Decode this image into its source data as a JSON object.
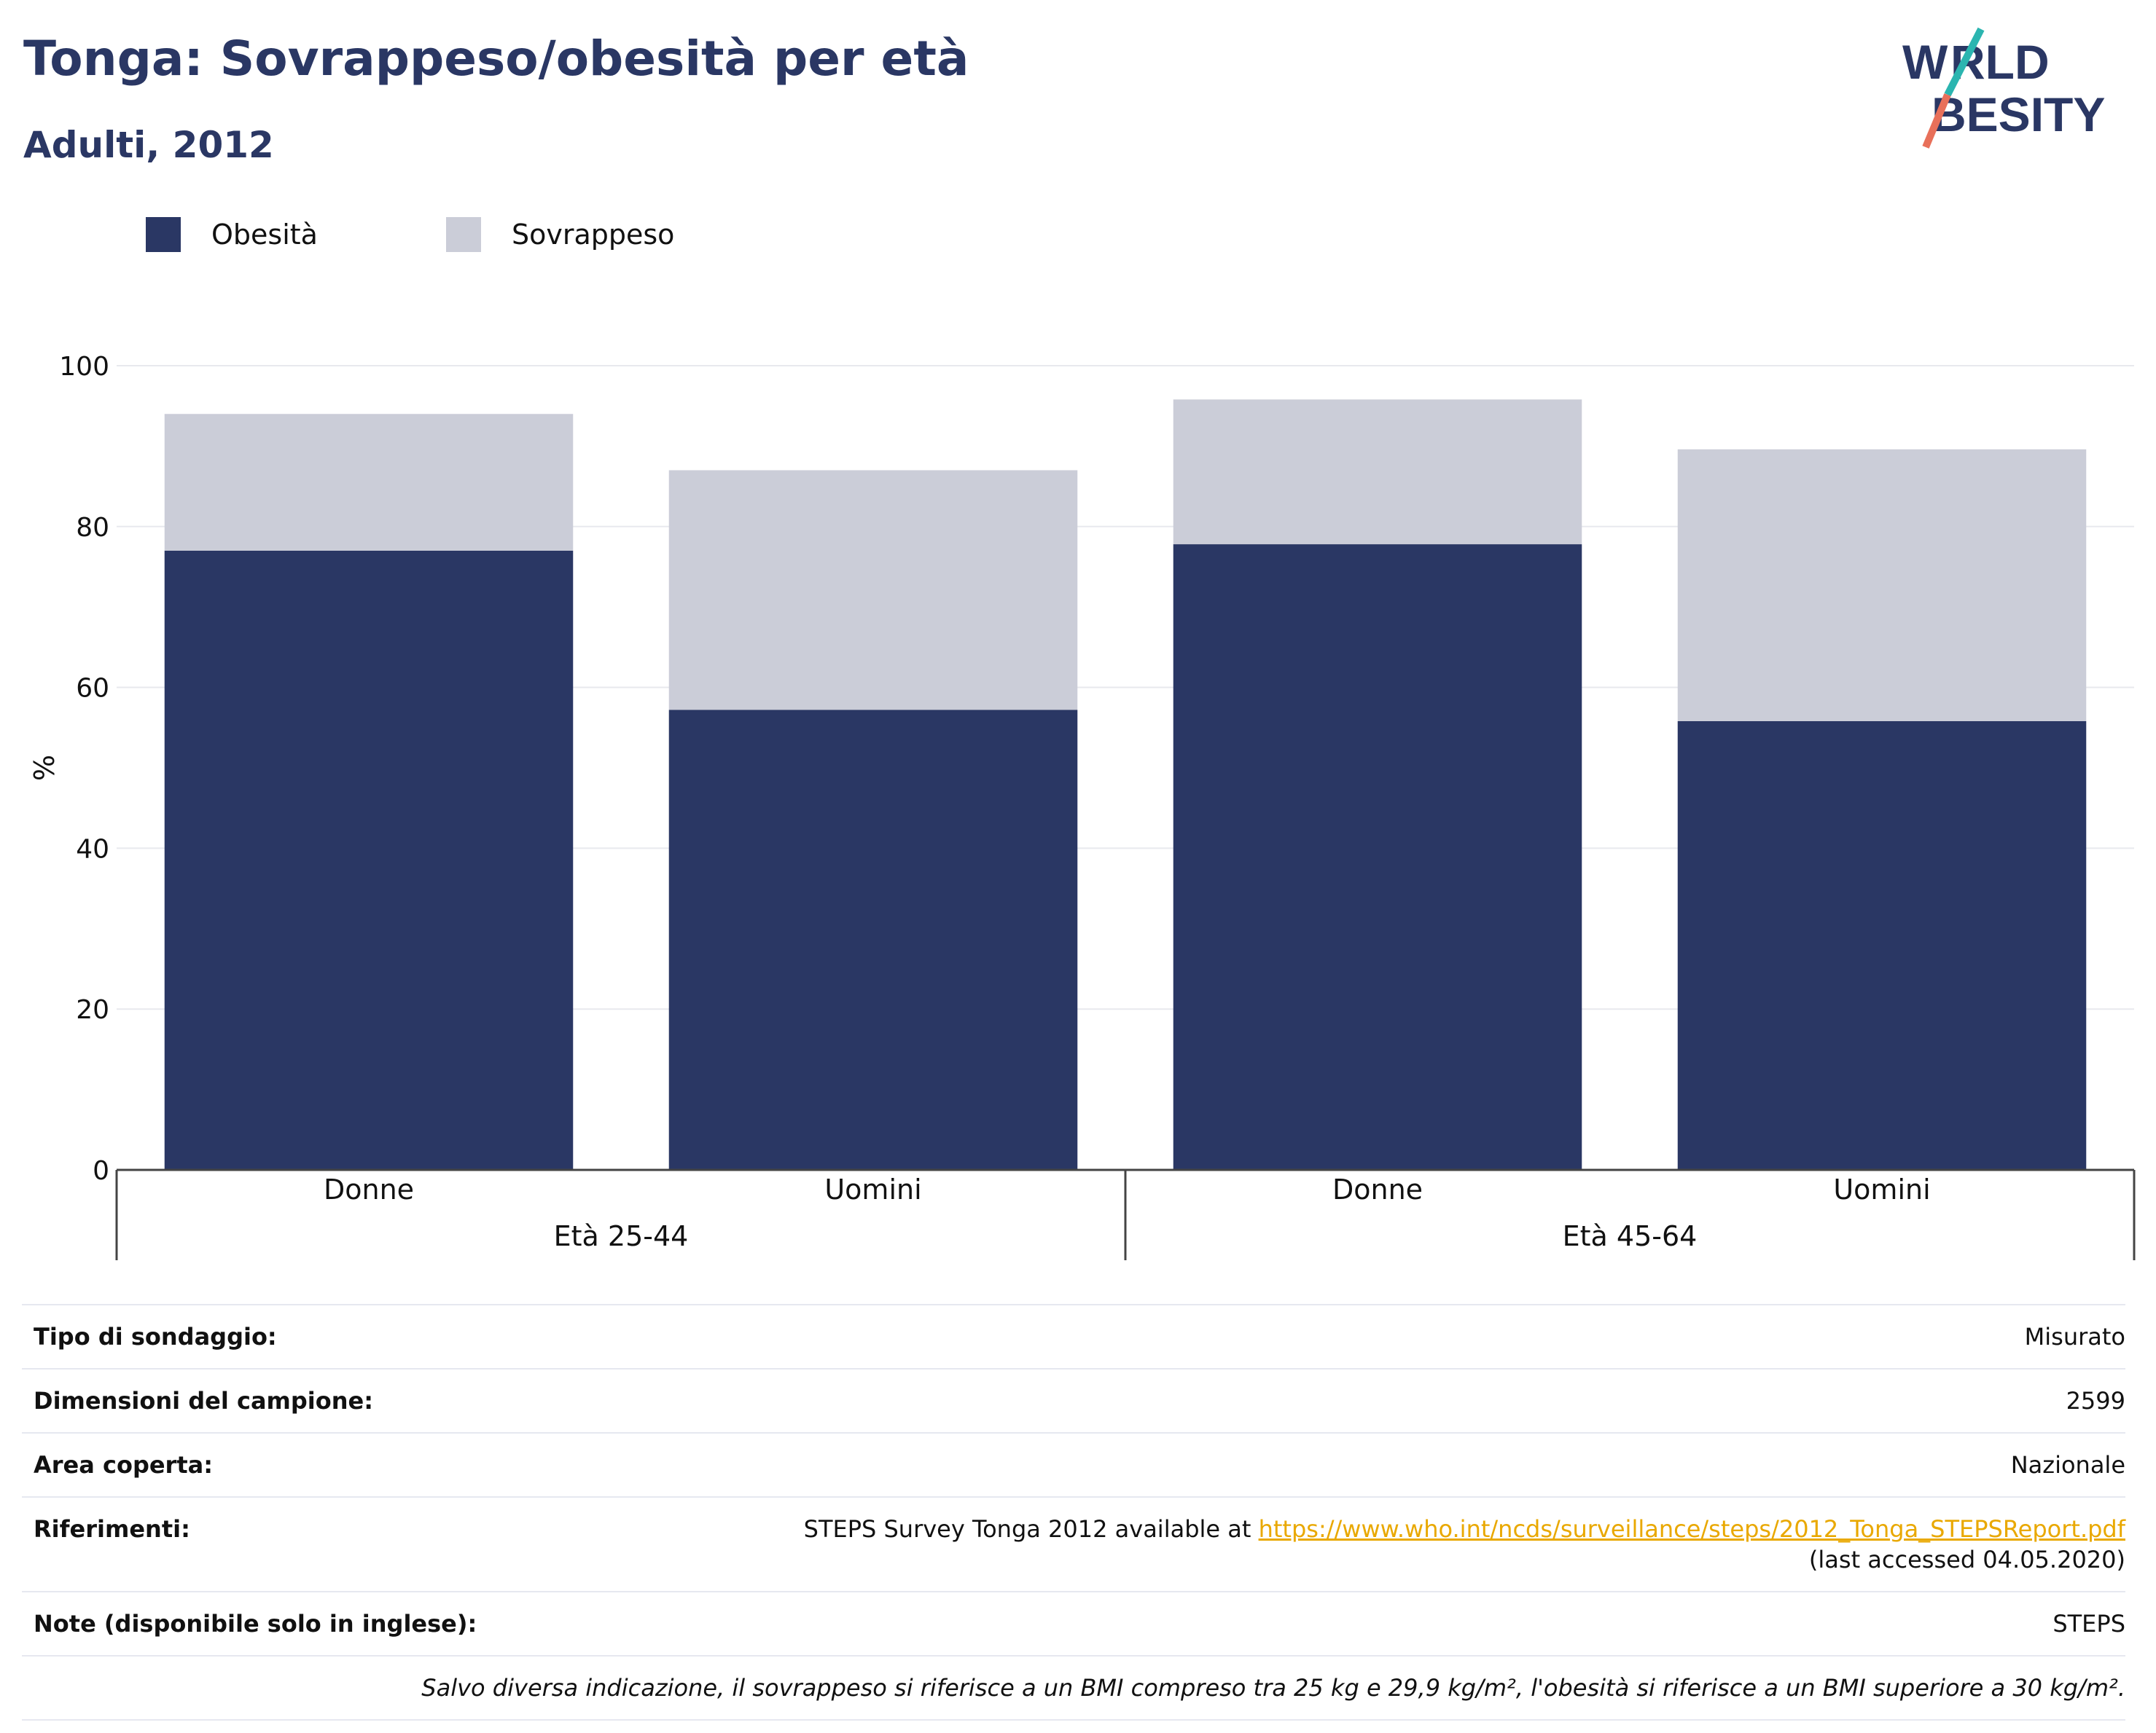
{
  "header": {
    "title": "Tonga: Sovrappeso/obesità per età",
    "subtitle": "Adulti, 2012",
    "logo_text": "WORLD OBESITY"
  },
  "colors": {
    "obesity": "#2a3764",
    "overweight": "#cbcdd8",
    "title": "#2a3764",
    "link": "#e9a800",
    "logo_teal": "#2bb5b0",
    "logo_coral": "#e8705a"
  },
  "legend": [
    {
      "label": "Obesità",
      "color": "#2a3764"
    },
    {
      "label": "Sovrappeso",
      "color": "#cbcdd8"
    }
  ],
  "chart_data": {
    "type": "bar",
    "stacked": true,
    "categories": [
      "Donne",
      "Uomini",
      "Donne",
      "Uomini"
    ],
    "groups": [
      {
        "label": "Età 25-44",
        "categories": [
          "Donne",
          "Uomini"
        ]
      },
      {
        "label": "Età 45-64",
        "categories": [
          "Donne",
          "Uomini"
        ]
      }
    ],
    "series": [
      {
        "name": "Obesità",
        "color": "#2a3764",
        "values": [
          77.0,
          57.2,
          77.8,
          55.8
        ]
      },
      {
        "name": "Sovrappeso",
        "color": "#cbcdd8",
        "values": [
          17.0,
          29.8,
          18.0,
          33.8
        ]
      }
    ],
    "ylabel": "%",
    "xlabel": "",
    "ylim": [
      0,
      100
    ],
    "yticks": [
      0,
      20,
      40,
      60,
      80,
      100
    ],
    "grid": true,
    "legend_position": "top-left"
  },
  "meta": {
    "rows": [
      {
        "key": "Tipo di sondaggio:",
        "value": "Misurato"
      },
      {
        "key": "Dimensioni del campione:",
        "value": "2599"
      },
      {
        "key": "Area coperta:",
        "value": "Nazionale"
      },
      {
        "key": "Riferimenti:",
        "value_prefix": "STEPS Survey Tonga 2012 available at ",
        "link": "https://www.who.int/ncds/surveillance/steps/2012_Tonga_STEPSReport.pdf",
        "value_suffix": " (last accessed 04.05.2020)"
      },
      {
        "key": "Note (disponibile solo in inglese):",
        "value": "STEPS"
      }
    ],
    "footnote": "Salvo diversa indicazione, il sovrappeso si riferisce a un BMI compreso tra 25 kg e 29,9 kg/m², l'obesità si riferisce a un BMI superiore a 30 kg/m²."
  }
}
